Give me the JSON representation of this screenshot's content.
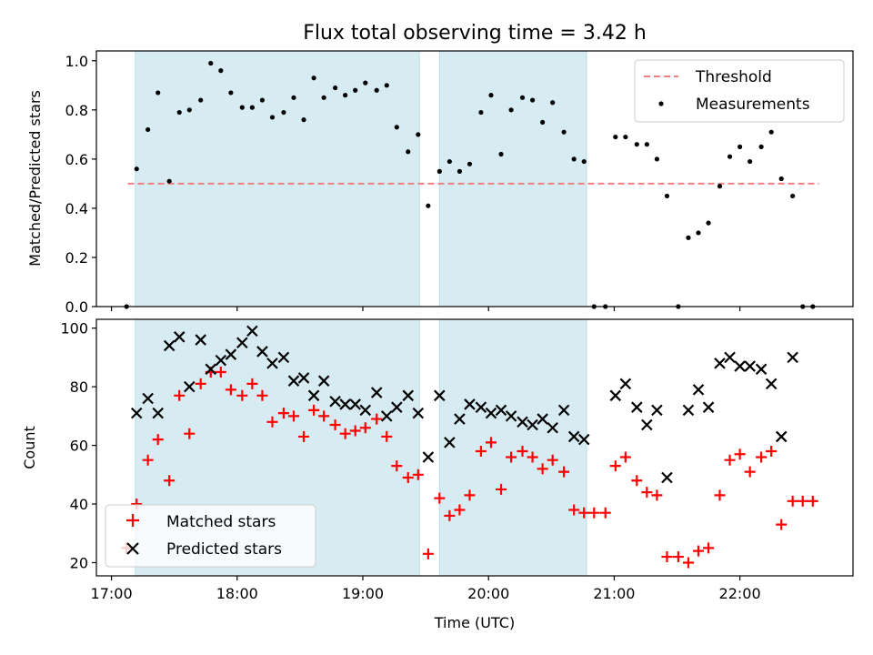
{
  "chart_data": {
    "title": "Flux total observing time = 3.42 h",
    "colors": {
      "threshold": "#f08080",
      "measurement": "#000000",
      "matched": "#ff0000",
      "predicted": "#000000",
      "span_fill": "#add8e6"
    },
    "x_axis": {
      "label": "Time (UTC)",
      "unit": "hours",
      "range": [
        16.88,
        22.9
      ],
      "ticks": [
        17,
        18,
        19,
        20,
        21,
        22
      ],
      "tick_labels": [
        "17:00",
        "18:00",
        "19:00",
        "20:00",
        "21:00",
        "22:00"
      ]
    },
    "observing_spans": [
      {
        "start": 17.19,
        "end": 19.45
      },
      {
        "start": 19.61,
        "end": 20.78
      }
    ],
    "panels": [
      {
        "id": "ratio",
        "type": "scatter",
        "ylabel": "Matched/Predicted stars",
        "ylim": [
          0,
          1.04
        ],
        "yticks": [
          0.0,
          0.2,
          0.4,
          0.6,
          0.8,
          1.0
        ],
        "ytick_labels": [
          "0.0",
          "0.2",
          "0.4",
          "0.6",
          "0.8",
          "1.0"
        ],
        "legend": {
          "placement": "upper right",
          "entries": [
            "Threshold",
            "Measurements"
          ]
        },
        "threshold": {
          "name": "Threshold",
          "value": 0.5,
          "x_start": 17.13,
          "x_end": 22.63
        },
        "series": [
          {
            "name": "Measurements",
            "points": [
              [
                17.12,
                0.0
              ],
              [
                17.2,
                0.56
              ],
              [
                17.29,
                0.72
              ],
              [
                17.37,
                0.87
              ],
              [
                17.46,
                0.51
              ],
              [
                17.54,
                0.79
              ],
              [
                17.62,
                0.8
              ],
              [
                17.71,
                0.84
              ],
              [
                17.79,
                0.99
              ],
              [
                17.87,
                0.96
              ],
              [
                17.95,
                0.87
              ],
              [
                18.04,
                0.81
              ],
              [
                18.12,
                0.81
              ],
              [
                18.2,
                0.84
              ],
              [
                18.28,
                0.77
              ],
              [
                18.37,
                0.79
              ],
              [
                18.45,
                0.85
              ],
              [
                18.53,
                0.76
              ],
              [
                18.61,
                0.93
              ],
              [
                18.69,
                0.85
              ],
              [
                18.78,
                0.89
              ],
              [
                18.86,
                0.86
              ],
              [
                18.94,
                0.88
              ],
              [
                19.02,
                0.91
              ],
              [
                19.11,
                0.88
              ],
              [
                19.19,
                0.9
              ],
              [
                19.27,
                0.73
              ],
              [
                19.36,
                0.63
              ],
              [
                19.44,
                0.7
              ],
              [
                19.52,
                0.41
              ],
              [
                19.61,
                0.55
              ],
              [
                19.69,
                0.59
              ],
              [
                19.77,
                0.55
              ],
              [
                19.85,
                0.58
              ],
              [
                19.94,
                0.79
              ],
              [
                20.02,
                0.86
              ],
              [
                20.1,
                0.62
              ],
              [
                20.18,
                0.8
              ],
              [
                20.27,
                0.85
              ],
              [
                20.35,
                0.84
              ],
              [
                20.43,
                0.75
              ],
              [
                20.51,
                0.83
              ],
              [
                20.6,
                0.71
              ],
              [
                20.68,
                0.6
              ],
              [
                20.76,
                0.59
              ],
              [
                20.84,
                0.0
              ],
              [
                20.93,
                0.0
              ],
              [
                21.01,
                0.69
              ],
              [
                21.09,
                0.69
              ],
              [
                21.18,
                0.66
              ],
              [
                21.26,
                0.66
              ],
              [
                21.34,
                0.6
              ],
              [
                21.42,
                0.45
              ],
              [
                21.51,
                0.0
              ],
              [
                21.59,
                0.28
              ],
              [
                21.67,
                0.3
              ],
              [
                21.75,
                0.34
              ],
              [
                21.84,
                0.49
              ],
              [
                21.92,
                0.61
              ],
              [
                22.0,
                0.65
              ],
              [
                22.08,
                0.59
              ],
              [
                22.17,
                0.65
              ],
              [
                22.25,
                0.71
              ],
              [
                22.33,
                0.52
              ],
              [
                22.42,
                0.45
              ],
              [
                22.5,
                0.0
              ],
              [
                22.58,
                0.0
              ]
            ]
          }
        ]
      },
      {
        "id": "counts",
        "type": "scatter",
        "ylabel": "Count",
        "ylim": [
          15.5,
          103
        ],
        "yticks": [
          20,
          40,
          60,
          80,
          100
        ],
        "ytick_labels": [
          "20",
          "40",
          "60",
          "80",
          "100"
        ],
        "legend": {
          "placement": "lower left",
          "entries": [
            "Matched stars",
            "Predicted stars"
          ]
        },
        "series": [
          {
            "name": "Matched stars",
            "marker": "plus",
            "points": [
              [
                17.12,
                25
              ],
              [
                17.2,
                40
              ],
              [
                17.29,
                55
              ],
              [
                17.37,
                62
              ],
              [
                17.46,
                48
              ],
              [
                17.54,
                77
              ],
              [
                17.62,
                64
              ],
              [
                17.71,
                81
              ],
              [
                17.79,
                85
              ],
              [
                17.87,
                85
              ],
              [
                17.95,
                79
              ],
              [
                18.04,
                77
              ],
              [
                18.12,
                81
              ],
              [
                18.2,
                77
              ],
              [
                18.28,
                68
              ],
              [
                18.37,
                71
              ],
              [
                18.45,
                70
              ],
              [
                18.53,
                63
              ],
              [
                18.61,
                72
              ],
              [
                18.69,
                70
              ],
              [
                18.78,
                67
              ],
              [
                18.86,
                64
              ],
              [
                18.94,
                65
              ],
              [
                19.02,
                66
              ],
              [
                19.11,
                69
              ],
              [
                19.19,
                63
              ],
              [
                19.27,
                53
              ],
              [
                19.36,
                49
              ],
              [
                19.44,
                50
              ],
              [
                19.52,
                23
              ],
              [
                19.61,
                42
              ],
              [
                19.69,
                36
              ],
              [
                19.77,
                38
              ],
              [
                19.85,
                43
              ],
              [
                19.94,
                58
              ],
              [
                20.02,
                61
              ],
              [
                20.1,
                45
              ],
              [
                20.18,
                56
              ],
              [
                20.27,
                58
              ],
              [
                20.35,
                56
              ],
              [
                20.43,
                52
              ],
              [
                20.51,
                55
              ],
              [
                20.6,
                51
              ],
              [
                20.68,
                38
              ],
              [
                20.76,
                37
              ],
              [
                20.84,
                37
              ],
              [
                20.93,
                37
              ],
              [
                21.01,
                53
              ],
              [
                21.09,
                56
              ],
              [
                21.18,
                48
              ],
              [
                21.26,
                44
              ],
              [
                21.34,
                43
              ],
              [
                21.42,
                22
              ],
              [
                21.51,
                22
              ],
              [
                21.59,
                20
              ],
              [
                21.67,
                24
              ],
              [
                21.75,
                25
              ],
              [
                21.84,
                43
              ],
              [
                21.92,
                55
              ],
              [
                22.0,
                57
              ],
              [
                22.08,
                51
              ],
              [
                22.17,
                56
              ],
              [
                22.25,
                58
              ],
              [
                22.33,
                33
              ],
              [
                22.42,
                41
              ],
              [
                22.5,
                41
              ],
              [
                22.58,
                41
              ]
            ]
          },
          {
            "name": "Predicted stars",
            "marker": "x",
            "points": [
              [
                17.2,
                71
              ],
              [
                17.29,
                76
              ],
              [
                17.37,
                71
              ],
              [
                17.46,
                94
              ],
              [
                17.54,
                97
              ],
              [
                17.62,
                80
              ],
              [
                17.71,
                96
              ],
              [
                17.79,
                86
              ],
              [
                17.87,
                89
              ],
              [
                17.95,
                91
              ],
              [
                18.04,
                95
              ],
              [
                18.12,
                99
              ],
              [
                18.2,
                92
              ],
              [
                18.28,
                88
              ],
              [
                18.37,
                90
              ],
              [
                18.45,
                82
              ],
              [
                18.53,
                83
              ],
              [
                18.61,
                77
              ],
              [
                18.69,
                82
              ],
              [
                18.78,
                75
              ],
              [
                18.86,
                74
              ],
              [
                18.94,
                74
              ],
              [
                19.02,
                72
              ],
              [
                19.11,
                78
              ],
              [
                19.19,
                70
              ],
              [
                19.27,
                73
              ],
              [
                19.36,
                77
              ],
              [
                19.44,
                71
              ],
              [
                19.52,
                56
              ],
              [
                19.61,
                77
              ],
              [
                19.69,
                61
              ],
              [
                19.77,
                69
              ],
              [
                19.85,
                74
              ],
              [
                19.94,
                73
              ],
              [
                20.02,
                71
              ],
              [
                20.1,
                72
              ],
              [
                20.18,
                70
              ],
              [
                20.27,
                68
              ],
              [
                20.35,
                67
              ],
              [
                20.43,
                69
              ],
              [
                20.51,
                66
              ],
              [
                20.6,
                72
              ],
              [
                20.68,
                63
              ],
              [
                20.76,
                62
              ],
              [
                21.01,
                77
              ],
              [
                21.09,
                81
              ],
              [
                21.18,
                73
              ],
              [
                21.26,
                67
              ],
              [
                21.34,
                72
              ],
              [
                21.42,
                49
              ],
              [
                21.59,
                72
              ],
              [
                21.67,
                79
              ],
              [
                21.75,
                73
              ],
              [
                21.84,
                88
              ],
              [
                21.92,
                90
              ],
              [
                22.0,
                87
              ],
              [
                22.08,
                87
              ],
              [
                22.17,
                86
              ],
              [
                22.25,
                81
              ],
              [
                22.33,
                63
              ],
              [
                22.42,
                90
              ]
            ]
          }
        ]
      }
    ]
  }
}
